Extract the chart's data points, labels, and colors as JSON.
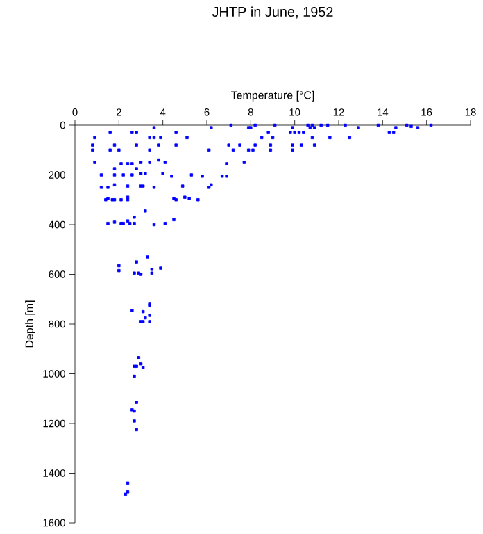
{
  "chart_data": {
    "type": "scatter",
    "title": "JHTP in June, 1952",
    "xlabel": "Temperature [°C]",
    "ylabel": "Depth [m]",
    "xlim": [
      0,
      18
    ],
    "xticks": [
      0,
      2,
      4,
      6,
      8,
      10,
      12,
      14,
      16,
      18
    ],
    "ylim": [
      1600,
      0
    ],
    "yticks": [
      0,
      200,
      400,
      600,
      800,
      1000,
      1200,
      1400,
      1600
    ],
    "marker": "square",
    "grid": false,
    "series": [
      {
        "color": "#0000ff",
        "x": [
          0.9,
          1.6,
          2.6,
          2.8,
          3.6,
          3.4,
          3.6,
          3.9,
          4.6,
          5.1,
          6.2,
          7.1,
          7.9,
          8.2,
          8.8,
          8.5,
          9.1,
          0.8,
          1.8,
          2.8,
          3.8,
          4.6,
          7.0,
          7.5,
          8.2,
          8.9,
          0.8,
          1.6,
          2.0,
          3.4,
          6.1,
          7.2,
          7.9,
          8.9,
          3.8,
          0.9,
          2.1,
          2.4,
          2.6,
          3.0,
          3.4,
          4.1,
          6.9,
          7.7,
          1.8,
          2.8,
          1.2,
          1.8,
          2.2,
          2.6,
          3.0,
          3.2,
          4.0,
          4.4,
          5.3,
          5.8,
          6.7,
          6.9,
          1.2,
          1.5,
          1.8,
          2.4,
          3.0,
          3.1,
          3.6,
          4.9,
          6.2,
          6.1,
          1.4,
          1.5,
          1.7,
          1.8,
          2.1,
          2.4,
          2.4,
          4.5,
          4.6,
          5.0,
          5.2,
          5.6,
          3.2,
          2.7,
          4.5,
          1.5,
          1.8,
          2.1,
          2.2,
          2.4,
          2.5,
          2.7,
          3.6,
          4.1,
          3.3,
          2.8,
          2.0,
          2.0,
          2.7,
          2.9,
          3.0,
          3.5,
          3.5,
          3.9,
          3.4,
          2.6,
          3.4,
          3.1,
          3.4,
          3.2,
          3.0,
          3.1,
          3.4,
          2.9,
          3.0,
          2.7,
          3.1,
          2.8,
          2.7,
          2.8,
          2.6,
          2.7,
          2.7,
          2.8,
          2.4,
          2.4,
          2.3,
          8.0,
          9.9,
          10.6,
          10.8,
          10.9,
          10.7,
          11.2,
          11.5,
          12.3,
          12.9,
          13.8,
          14.6,
          15.1,
          15.3,
          15.6,
          16.2,
          9.8,
          10.0,
          10.2,
          10.4,
          14.3,
          14.5,
          9.0,
          10.8,
          11.6,
          12.5,
          9.9,
          10.3,
          10.9,
          8.1,
          9.9
        ],
        "values": [
          50,
          30,
          30,
          30,
          10,
          50,
          50,
          50,
          30,
          50,
          10,
          0,
          10,
          0,
          30,
          50,
          0,
          80,
          80,
          80,
          80,
          80,
          80,
          80,
          80,
          80,
          100,
          100,
          100,
          100,
          100,
          100,
          100,
          100,
          140,
          150,
          155,
          155,
          155,
          150,
          150,
          150,
          155,
          150,
          175,
          175,
          200,
          200,
          200,
          200,
          195,
          195,
          195,
          205,
          200,
          205,
          205,
          205,
          250,
          250,
          240,
          245,
          245,
          245,
          250,
          245,
          240,
          250,
          300,
          295,
          300,
          300,
          300,
          300,
          290,
          295,
          300,
          290,
          295,
          300,
          345,
          370,
          380,
          395,
          390,
          395,
          395,
          385,
          395,
          395,
          400,
          395,
          530,
          550,
          565,
          585,
          595,
          595,
          600,
          580,
          595,
          575,
          720,
          745,
          725,
          750,
          765,
          775,
          790,
          790,
          790,
          935,
          960,
          970,
          975,
          970,
          1010,
          1115,
          1145,
          1150,
          1190,
          1225,
          1440,
          1475,
          1485,
          10,
          10,
          0,
          0,
          10,
          10,
          0,
          0,
          0,
          10,
          0,
          10,
          0,
          5,
          10,
          0,
          30,
          30,
          30,
          30,
          30,
          30,
          50,
          50,
          50,
          50,
          80,
          80,
          80,
          100,
          100
        ]
      }
    ]
  }
}
